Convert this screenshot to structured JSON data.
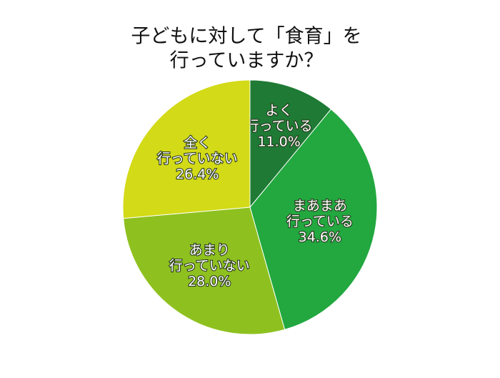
{
  "chart_data": {
    "type": "pie",
    "title": [
      "子どもに対して「食育」を",
      "行っていますか？"
    ],
    "categories": [
      [
        "よく",
        "行っている"
      ],
      [
        "まあまあ",
        "行っている"
      ],
      [
        "あまり",
        "行っていない"
      ],
      [
        "全く",
        "行っていない"
      ]
    ],
    "values": [
      11.0,
      34.6,
      28.0,
      26.4
    ],
    "value_labels": [
      "11.0%",
      "34.6%",
      "28.0%",
      "26.4%"
    ],
    "colors": [
      "#1e7a34",
      "#22a83f",
      "#8ec11f",
      "#d3da17"
    ]
  }
}
